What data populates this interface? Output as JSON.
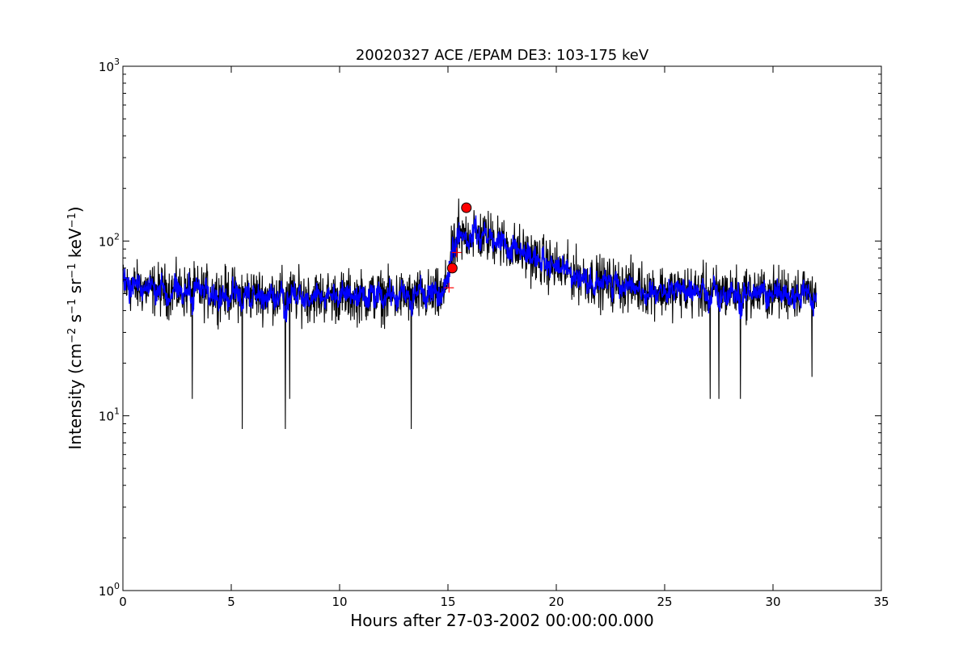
{
  "chart_data": {
    "type": "line",
    "title": "20020327 ACE /EPAM DE3: 103-175 keV",
    "xlabel": "Hours after 27-03-2002 00:00:00.000",
    "ylabel_parts": [
      "Intensity (cm",
      "−2",
      " s",
      "−1",
      " sr",
      "−1",
      " keV",
      "−1",
      ")"
    ],
    "xlim": [
      0,
      35
    ],
    "ylim": [
      1,
      1000
    ],
    "yscale": "log",
    "grid": false,
    "x_ticks": [
      {
        "value": 0,
        "label": "0"
      },
      {
        "value": 5,
        "label": "5"
      },
      {
        "value": 10,
        "label": "10"
      },
      {
        "value": 15,
        "label": "15"
      },
      {
        "value": 20,
        "label": "20"
      },
      {
        "value": 25,
        "label": "25"
      },
      {
        "value": 30,
        "label": "30"
      },
      {
        "value": 35,
        "label": "35"
      }
    ],
    "y_ticks": [
      {
        "value": 1,
        "base": "10",
        "exp": "0"
      },
      {
        "value": 10,
        "base": "10",
        "exp": "1"
      },
      {
        "value": 100,
        "base": "10",
        "exp": "2"
      },
      {
        "value": 1000,
        "base": "10",
        "exp": "3"
      }
    ],
    "series": [
      {
        "color": "#000000",
        "style": "raw-line",
        "x_range": [
          0,
          32
        ],
        "profile": [
          [
            0,
            55
          ],
          [
            2,
            52
          ],
          [
            5,
            50
          ],
          [
            10,
            48
          ],
          [
            14.8,
            48
          ],
          [
            15.2,
            85
          ],
          [
            15.8,
            110
          ],
          [
            17,
            105
          ],
          [
            18.5,
            85
          ],
          [
            20,
            70
          ],
          [
            22,
            58
          ],
          [
            25,
            52
          ],
          [
            30,
            50
          ],
          [
            32,
            52
          ]
        ],
        "min_spikes": [
          [
            3.2,
            12.5
          ],
          [
            5.5,
            8.4
          ],
          [
            7.5,
            8.4
          ],
          [
            7.7,
            12.5
          ],
          [
            13.3,
            8.4
          ],
          [
            27.1,
            12.5
          ],
          [
            27.5,
            12.5
          ],
          [
            28.5,
            12.5
          ],
          [
            31.8,
            16.7
          ]
        ],
        "max_spikes": [
          [
            15.5,
            175
          ],
          [
            16.2,
            150
          ],
          [
            17.3,
            140
          ]
        ]
      },
      {
        "color": "#0000ff",
        "style": "smoothed-line",
        "x_range": [
          0,
          32
        ],
        "profile": [
          [
            0,
            55
          ],
          [
            2,
            52
          ],
          [
            5,
            50
          ],
          [
            10,
            48
          ],
          [
            14.8,
            48
          ],
          [
            15.2,
            85
          ],
          [
            15.8,
            110
          ],
          [
            17,
            105
          ],
          [
            18.5,
            85
          ],
          [
            20,
            70
          ],
          [
            22,
            58
          ],
          [
            25,
            52
          ],
          [
            30,
            50
          ],
          [
            32,
            52
          ]
        ]
      }
    ],
    "markers": [
      {
        "type": "circle",
        "color": "#ff0000",
        "x": 15.85,
        "y": 155
      },
      {
        "type": "circle",
        "color": "#ff0000",
        "x": 15.2,
        "y": 70
      },
      {
        "type": "plus",
        "color": "#ff0000",
        "x": 15.05,
        "y": 54
      },
      {
        "type": "plus",
        "color": "#ff0000",
        "x": 15.4,
        "y": 86
      }
    ]
  }
}
